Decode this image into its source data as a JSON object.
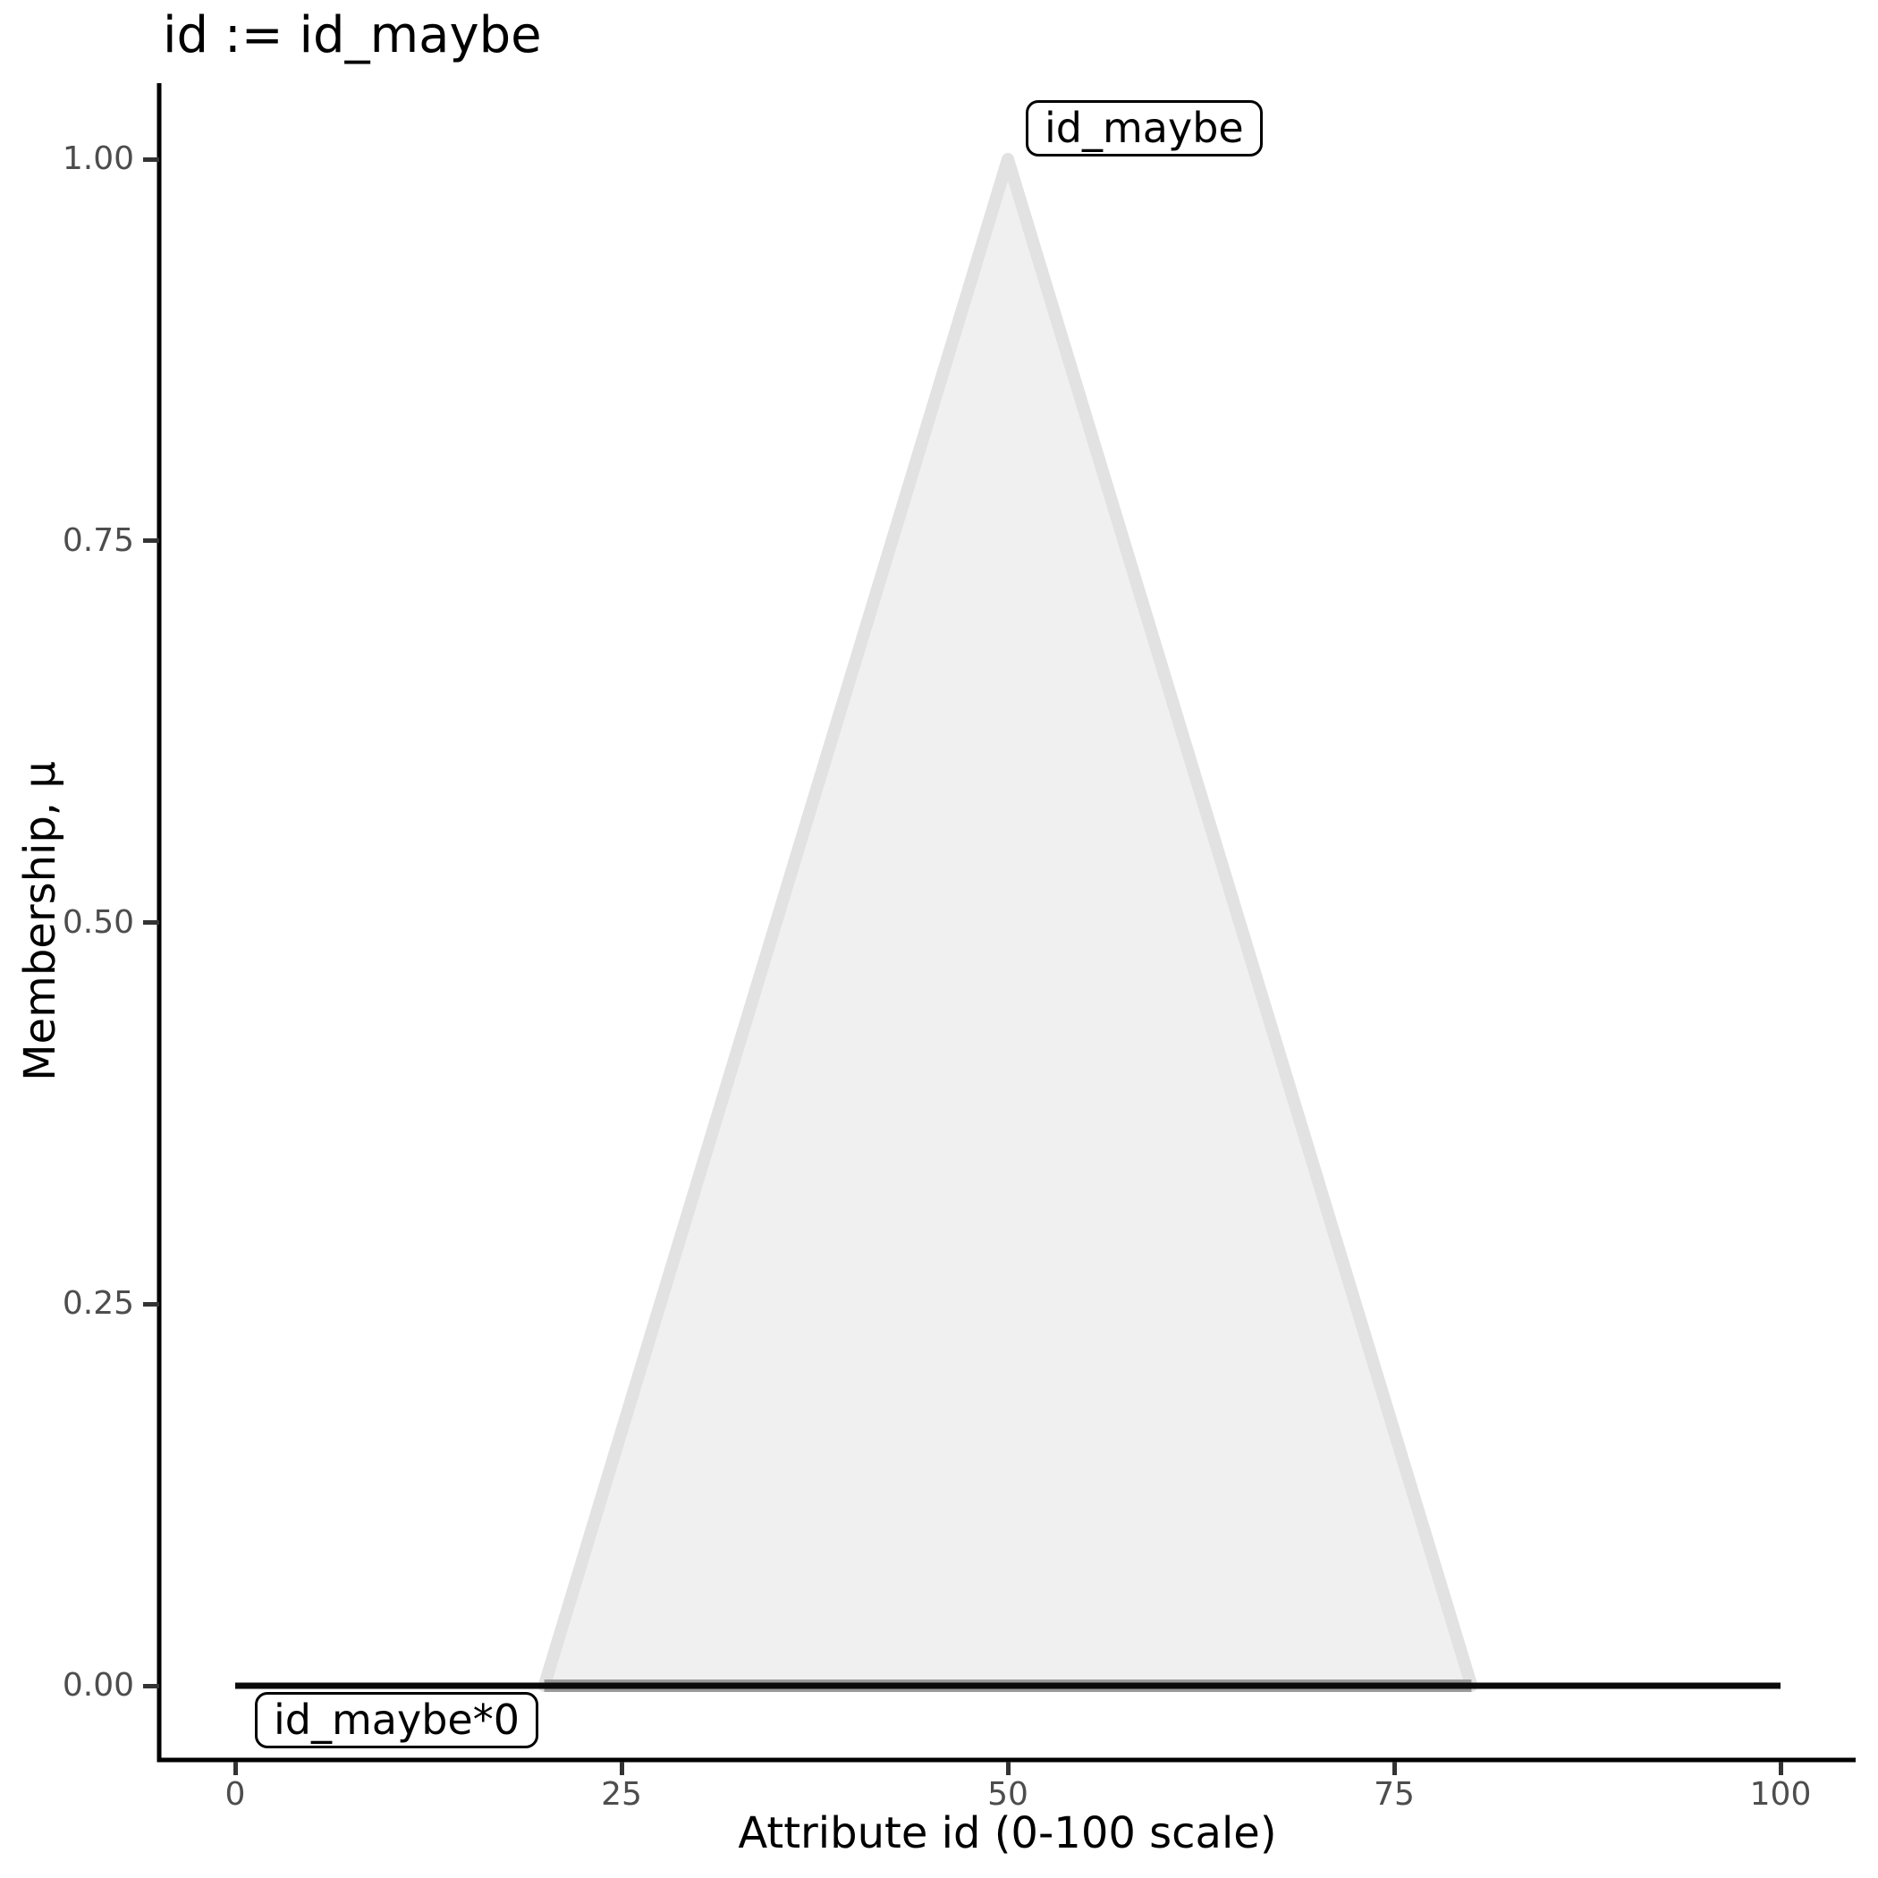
{
  "header": {
    "title": "id := id_maybe"
  },
  "chart_data": {
    "type": "area",
    "subtype": "fuzzy-membership-functions",
    "title": "id := id_maybe",
    "xlabel": "Attribute id (0-100 scale)",
    "ylabel": "Membership, μ",
    "xlim": [
      -5,
      105
    ],
    "ylim": [
      0,
      1
    ],
    "grid": false,
    "legend_position": "none (inline boxed labels)",
    "background": "#ffffff",
    "x_ticks": [
      {
        "value": 0,
        "label": "0"
      },
      {
        "value": 25,
        "label": "25"
      },
      {
        "value": 50,
        "label": "50"
      },
      {
        "value": 75,
        "label": "75"
      },
      {
        "value": 100,
        "label": "100"
      }
    ],
    "y_ticks": [
      {
        "value": 0,
        "label": "0.00"
      },
      {
        "value": 0.25,
        "label": "0.25"
      },
      {
        "value": 0.5,
        "label": "0.50"
      },
      {
        "value": 0.75,
        "label": "0.75"
      },
      {
        "value": 1,
        "label": "1.00"
      }
    ],
    "series": [
      {
        "name": "id_maybe",
        "label": "id_maybe",
        "shape": "triangle",
        "x": [
          20,
          50,
          80
        ],
        "y": [
          0,
          1,
          0
        ],
        "fill": "#f0f0f0",
        "stroke": "#e2e2e2",
        "base_stroke": "#9a9a9a"
      },
      {
        "name": "id_maybe*0",
        "label": "id_maybe*0",
        "shape": "line",
        "x": [
          0,
          100
        ],
        "y": [
          0,
          0
        ],
        "stroke": "#0a0a0a"
      }
    ]
  },
  "colors": {
    "axis_line": "#000000",
    "tick_mark": "#333333",
    "tick_label": "#4d4d4d",
    "title_text": "#000000",
    "label_box_border": "#000000",
    "label_box_bg": "#ffffff"
  }
}
